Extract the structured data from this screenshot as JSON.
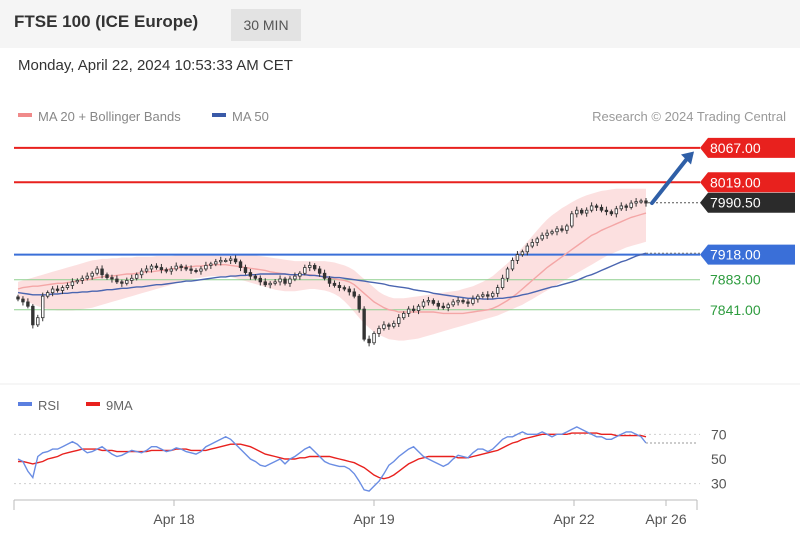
{
  "header": {
    "title": "FTSE 100 (ICE Europe)",
    "timeframe": "30 MIN",
    "date": "Monday, April 22, 2024 10:53:33 AM CET"
  },
  "colors": {
    "resistance": "#e8211e",
    "support": "#3a6fd8",
    "green_level": "#2e9c3f",
    "candle": "#333333",
    "ma20": "#f4a6a6",
    "band_fill": "#fbdada",
    "ma50": "#4a65b0",
    "arrow": "#2f5fa7",
    "rsi": "#6a8de3",
    "rsi_ma": "#e8211e"
  },
  "chart_data": [
    {
      "type": "candlestick",
      "legend": [
        {
          "label": "MA 20 + Bollinger Bands",
          "color": "#f08a8a"
        },
        {
          "label": "MA 50",
          "color": "#3a5aa8"
        }
      ],
      "credit": "Research © 2024 Trading Central",
      "x_ticks": [
        "Apr 18",
        "Apr 19",
        "Apr 22",
        "Apr 26"
      ],
      "y_range": [
        7750,
        8085
      ],
      "levels": [
        {
          "label": "8067.00",
          "value": 8067,
          "style": "resistance"
        },
        {
          "label": "8019.00",
          "value": 8019,
          "style": "resistance"
        },
        {
          "label": "7990.50",
          "value": 7990.5,
          "style": "last"
        },
        {
          "label": "7918.00",
          "value": 7918,
          "style": "support-main"
        },
        {
          "label": "7883.00",
          "value": 7883,
          "style": "support"
        },
        {
          "label": "7841.00",
          "value": 7841,
          "style": "support"
        }
      ],
      "arrow": {
        "from_value": 7990,
        "to_value": 8062
      },
      "close": [
        7856,
        7852,
        7846,
        7820,
        7830,
        7860,
        7865,
        7870,
        7868,
        7872,
        7875,
        7880,
        7882,
        7885,
        7888,
        7892,
        7898,
        7890,
        7886,
        7884,
        7880,
        7878,
        7882,
        7885,
        7890,
        7895,
        7898,
        7902,
        7900,
        7897,
        7895,
        7898,
        7902,
        7900,
        7898,
        7896,
        7895,
        7898,
        7903,
        7905,
        7908,
        7910,
        7910,
        7912,
        7908,
        7900,
        7893,
        7888,
        7885,
        7880,
        7876,
        7878,
        7880,
        7884,
        7878,
        7884,
        7888,
        7892,
        7900,
        7903,
        7898,
        7892,
        7885,
        7878,
        7875,
        7872,
        7870,
        7866,
        7860,
        7842,
        7800,
        7795,
        7808,
        7815,
        7820,
        7818,
        7822,
        7830,
        7836,
        7842,
        7840,
        7846,
        7852,
        7854,
        7850,
        7846,
        7844,
        7848,
        7852,
        7854,
        7852,
        7850,
        7856,
        7860,
        7862,
        7860,
        7864,
        7872,
        7885,
        7898,
        7910,
        7918,
        7922,
        7930,
        7935,
        7940,
        7945,
        7948,
        7950,
        7954,
        7952,
        7958,
        7975,
        7980,
        7976,
        7980,
        7986,
        7984,
        7980,
        7978,
        7975,
        7982,
        7986,
        7984,
        7990,
        7992,
        7993,
        7990
      ],
      "ma20": [
        7870,
        7872,
        7873,
        7874,
        7874,
        7875,
        7876,
        7877,
        7878,
        7878,
        7879,
        7880,
        7881,
        7882,
        7883,
        7884,
        7886,
        7887,
        7888,
        7888,
        7889,
        7890,
        7891,
        7891,
        7892,
        7893,
        7894,
        7894,
        7895,
        7896,
        7897,
        7898,
        7899,
        7900,
        7901,
        7901,
        7902,
        7902,
        7903,
        7904,
        7904,
        7904,
        7904,
        7903,
        7902,
        7901,
        7900,
        7899,
        7898,
        7897,
        7896,
        7894,
        7893,
        7892,
        7891,
        7890,
        7890,
        7890,
        7890,
        7890,
        7889,
        7888,
        7887,
        7886,
        7884,
        7883,
        7882,
        7880,
        7876,
        7870,
        7864,
        7858,
        7852,
        7848,
        7844,
        7841,
        7840,
        7838,
        7838,
        7838,
        7838,
        7838,
        7838,
        7838,
        7838,
        7837,
        7836,
        7836,
        7836,
        7836,
        7836,
        7837,
        7838,
        7839,
        7840,
        7841,
        7843,
        7846,
        7850,
        7854,
        7859,
        7864,
        7870,
        7876,
        7882,
        7888,
        7894,
        7900,
        7905,
        7910,
        7915,
        7920,
        7925,
        7930,
        7935,
        7940,
        7945,
        7948,
        7952,
        7955,
        7958,
        7961,
        7964,
        7967,
        7970,
        7972,
        7974,
        7976
      ],
      "ma50": [
        7865,
        7864,
        7863,
        7862,
        7862,
        7862,
        7862,
        7863,
        7863,
        7864,
        7864,
        7865,
        7865,
        7866,
        7866,
        7867,
        7867,
        7868,
        7869,
        7869,
        7870,
        7871,
        7871,
        7872,
        7873,
        7873,
        7874,
        7875,
        7876,
        7876,
        7877,
        7878,
        7879,
        7880,
        7881,
        7881,
        7882,
        7883,
        7884,
        7885,
        7886,
        7887,
        7887,
        7888,
        7888,
        7889,
        7889,
        7890,
        7890,
        7891,
        7891,
        7891,
        7891,
        7891,
        7891,
        7890,
        7890,
        7890,
        7890,
        7889,
        7889,
        7888,
        7887,
        7887,
        7886,
        7886,
        7885,
        7884,
        7883,
        7882,
        7881,
        7880,
        7879,
        7878,
        7877,
        7875,
        7874,
        7873,
        7872,
        7871,
        7869,
        7868,
        7867,
        7866,
        7864,
        7863,
        7862,
        7861,
        7860,
        7859,
        7858,
        7857,
        7857,
        7857,
        7856,
        7856,
        7856,
        7857,
        7857,
        7858,
        7859,
        7860,
        7862,
        7863,
        7865,
        7867,
        7869,
        7871,
        7873,
        7874,
        7876,
        7878,
        7880,
        7882,
        7885,
        7888,
        7890,
        7893,
        7896,
        7899,
        7902,
        7905,
        7908,
        7910,
        7913,
        7916,
        7918,
        7920
      ],
      "bb_upper": [
        7880,
        7882,
        7884,
        7886,
        7888,
        7890,
        7892,
        7894,
        7896,
        7898,
        7900,
        7902,
        7904,
        7906,
        7908,
        7910,
        7911,
        7912,
        7912,
        7913,
        7913,
        7914,
        7914,
        7914,
        7915,
        7915,
        7915,
        7915,
        7916,
        7916,
        7916,
        7916,
        7917,
        7917,
        7917,
        7917,
        7917,
        7918,
        7918,
        7918,
        7918,
        7919,
        7919,
        7919,
        7919,
        7918,
        7918,
        7917,
        7917,
        7916,
        7915,
        7914,
        7913,
        7912,
        7911,
        7910,
        7909,
        7909,
        7909,
        7909,
        7909,
        7909,
        7909,
        7908,
        7907,
        7905,
        7903,
        7900,
        7896,
        7890,
        7884,
        7878,
        7872,
        7866,
        7862,
        7859,
        7857,
        7857,
        7857,
        7858,
        7859,
        7860,
        7861,
        7862,
        7863,
        7864,
        7865,
        7866,
        7867,
        7868,
        7870,
        7872,
        7874,
        7877,
        7880,
        7884,
        7888,
        7894,
        7900,
        7906,
        7912,
        7920,
        7928,
        7936,
        7944,
        7952,
        7960,
        7967,
        7973,
        7978,
        7983,
        7987,
        7991,
        7995,
        7998,
        8001,
        8003,
        8005,
        8007,
        8008,
        8009,
        8010,
        8010,
        8010,
        8010,
        8010,
        8010,
        8010
      ],
      "bb_lower": [
        7858,
        7855,
        7852,
        7849,
        7846,
        7844,
        7842,
        7841,
        7840,
        7840,
        7840,
        7840,
        7841,
        7842,
        7843,
        7844,
        7846,
        7848,
        7850,
        7852,
        7854,
        7856,
        7858,
        7860,
        7862,
        7864,
        7866,
        7868,
        7870,
        7872,
        7874,
        7876,
        7878,
        7880,
        7882,
        7884,
        7885,
        7886,
        7887,
        7888,
        7888,
        7888,
        7888,
        7887,
        7885,
        7883,
        7881,
        7879,
        7877,
        7875,
        7873,
        7871,
        7869,
        7868,
        7867,
        7867,
        7867,
        7868,
        7869,
        7870,
        7870,
        7869,
        7868,
        7866,
        7863,
        7859,
        7853,
        7846,
        7838,
        7830,
        7822,
        7816,
        7810,
        7806,
        7803,
        7800,
        7799,
        7798,
        7798,
        7799,
        7800,
        7801,
        7803,
        7805,
        7807,
        7809,
        7811,
        7813,
        7815,
        7817,
        7819,
        7821,
        7823,
        7825,
        7827,
        7829,
        7831,
        7833,
        7836,
        7839,
        7842,
        7845,
        7848,
        7852,
        7856,
        7860,
        7864,
        7868,
        7872,
        7876,
        7880,
        7884,
        7888,
        7892,
        7896,
        7900,
        7904,
        7908,
        7912,
        7916,
        7919,
        7922,
        7925,
        7928,
        7930,
        7932,
        7934,
        7936
      ]
    },
    {
      "type": "line",
      "legend": [
        {
          "label": "RSI",
          "color": "#5b7fe0"
        },
        {
          "label": "9MA",
          "color": "#e8211e"
        }
      ],
      "y_ticks": [
        "70",
        "50",
        "30"
      ],
      "y_range": [
        20,
        80
      ],
      "guides": [
        70,
        30
      ],
      "series": [
        {
          "name": "RSI",
          "values": [
            50,
            48,
            40,
            35,
            52,
            55,
            56,
            58,
            58,
            60,
            62,
            64,
            62,
            58,
            55,
            56,
            58,
            60,
            57,
            54,
            52,
            53,
            55,
            57,
            56,
            55,
            57,
            60,
            60,
            58,
            56,
            57,
            59,
            58,
            56,
            55,
            54,
            56,
            60,
            62,
            64,
            66,
            68,
            66,
            62,
            58,
            54,
            50,
            48,
            45,
            44,
            46,
            48,
            50,
            46,
            50,
            52,
            55,
            58,
            60,
            56,
            52,
            48,
            46,
            45,
            44,
            44,
            42,
            38,
            32,
            25,
            24,
            28,
            32,
            38,
            45,
            48,
            52,
            55,
            58,
            60,
            56,
            52,
            50,
            48,
            46,
            44,
            46,
            50,
            53,
            52,
            51,
            55,
            58,
            58,
            56,
            58,
            62,
            66,
            68,
            68,
            70,
            72,
            70,
            70,
            70,
            72,
            70,
            68,
            70,
            70,
            72,
            74,
            76,
            74,
            72,
            70,
            68,
            68,
            66,
            66,
            68,
            70,
            72,
            72,
            70,
            68,
            63
          ]
        },
        {
          "name": "9MA",
          "values": [
            48,
            48,
            47,
            46,
            47,
            48,
            50,
            51,
            52,
            54,
            55,
            56,
            57,
            58,
            58,
            58,
            58,
            57,
            57,
            57,
            56,
            56,
            56,
            56,
            56,
            56,
            56,
            57,
            57,
            57,
            57,
            57,
            58,
            58,
            58,
            57,
            57,
            57,
            57,
            58,
            59,
            60,
            61,
            62,
            62,
            62,
            61,
            60,
            58,
            56,
            54,
            53,
            52,
            51,
            50,
            50,
            50,
            51,
            51,
            52,
            52,
            52,
            52,
            52,
            51,
            50,
            49,
            48,
            47,
            45,
            43,
            40,
            37,
            35,
            34,
            35,
            37,
            40,
            43,
            46,
            48,
            50,
            51,
            52,
            52,
            52,
            52,
            52,
            52,
            51,
            51,
            51,
            52,
            53,
            54,
            55,
            56,
            57,
            59,
            61,
            63,
            64,
            66,
            67,
            68,
            69,
            70,
            70,
            70,
            70,
            70,
            70,
            71,
            71,
            71,
            71,
            71,
            71,
            70,
            70,
            70,
            69,
            69,
            69,
            69,
            69,
            69,
            68
          ]
        }
      ]
    }
  ]
}
